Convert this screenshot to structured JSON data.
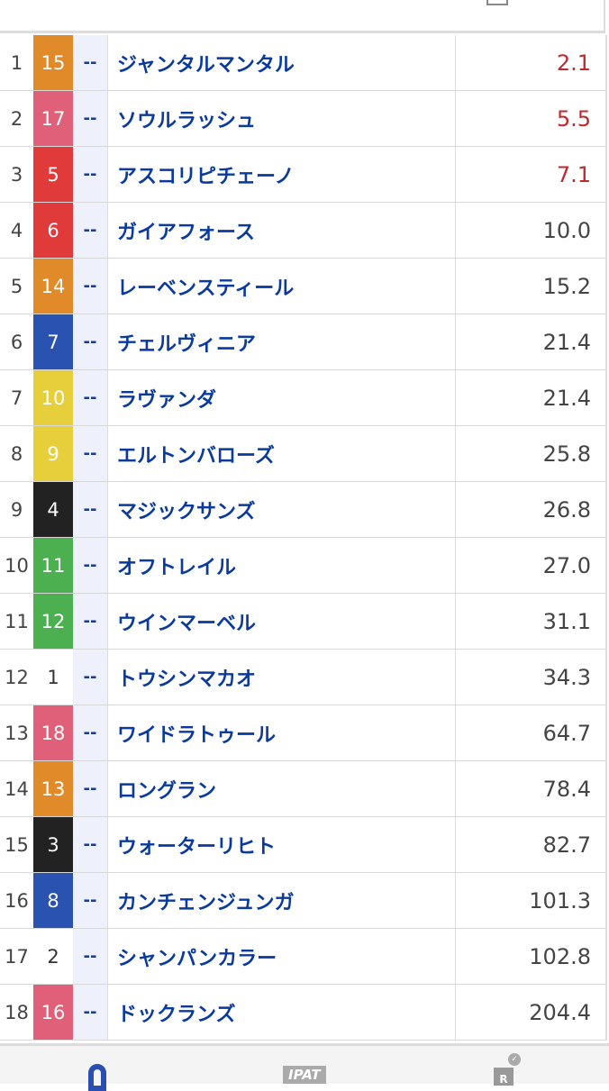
{
  "colors": {
    "orange": "#e08a2a",
    "pink": "#e0607a",
    "red": "#e03a3a",
    "blue": "#2a52b0",
    "yellow": "#e6cf3a",
    "black": "#222222",
    "green": "#4caf50",
    "white": "#ffffff",
    "fav_odds": "#c0282e",
    "name": "#0a3a9e"
  },
  "rows": [
    {
      "rank": "1",
      "num": "15",
      "color": "orange",
      "mark": "--",
      "name": "ジャンタルマンタル",
      "odds": "2.1",
      "fav": true
    },
    {
      "rank": "2",
      "num": "17",
      "color": "pink",
      "mark": "--",
      "name": "ソウルラッシュ",
      "odds": "5.5",
      "fav": true
    },
    {
      "rank": "3",
      "num": "5",
      "color": "red",
      "mark": "--",
      "name": "アスコリピチェーノ",
      "odds": "7.1",
      "fav": true
    },
    {
      "rank": "4",
      "num": "6",
      "color": "red",
      "mark": "--",
      "name": "ガイアフォース",
      "odds": "10.0"
    },
    {
      "rank": "5",
      "num": "14",
      "color": "orange",
      "mark": "--",
      "name": "レーベンスティール",
      "odds": "15.2"
    },
    {
      "rank": "6",
      "num": "7",
      "color": "blue",
      "mark": "--",
      "name": "チェルヴィニア",
      "odds": "21.4"
    },
    {
      "rank": "7",
      "num": "10",
      "color": "yellow",
      "mark": "--",
      "name": "ラヴァンダ",
      "odds": "21.4"
    },
    {
      "rank": "8",
      "num": "9",
      "color": "yellow",
      "mark": "--",
      "name": "エルトンバローズ",
      "odds": "25.8"
    },
    {
      "rank": "9",
      "num": "4",
      "color": "black",
      "mark": "--",
      "name": "マジックサンズ",
      "odds": "26.8"
    },
    {
      "rank": "10",
      "num": "11",
      "color": "green",
      "mark": "--",
      "name": "オフトレイル",
      "odds": "27.0"
    },
    {
      "rank": "11",
      "num": "12",
      "color": "green",
      "mark": "--",
      "name": "ウインマーベル",
      "odds": "31.1"
    },
    {
      "rank": "12",
      "num": "1",
      "color": "white",
      "mark": "--",
      "name": "トウシンマカオ",
      "odds": "34.3"
    },
    {
      "rank": "13",
      "num": "18",
      "color": "pink",
      "mark": "--",
      "name": "ワイドラトゥール",
      "odds": "64.7"
    },
    {
      "rank": "14",
      "num": "13",
      "color": "orange",
      "mark": "--",
      "name": "ロングラン",
      "odds": "78.4"
    },
    {
      "rank": "15",
      "num": "3",
      "color": "black",
      "mark": "--",
      "name": "ウォーターリヒト",
      "odds": "82.7"
    },
    {
      "rank": "16",
      "num": "8",
      "color": "blue",
      "mark": "--",
      "name": "カンチェンジュンガ",
      "odds": "101.3"
    },
    {
      "rank": "17",
      "num": "2",
      "color": "white",
      "mark": "--",
      "name": "シャンパンカラー",
      "odds": "102.8"
    },
    {
      "rank": "18",
      "num": "16",
      "color": "pink",
      "mark": "--",
      "name": "ドックランズ",
      "odds": "204.4"
    }
  ],
  "nav": {
    "items": [
      {
        "icon": "map-pin-icon"
      },
      {
        "label": "IPAT",
        "icon": "ipat-icon"
      },
      {
        "label": "R",
        "icon": "race-check-icon",
        "badge": "✓"
      }
    ]
  }
}
